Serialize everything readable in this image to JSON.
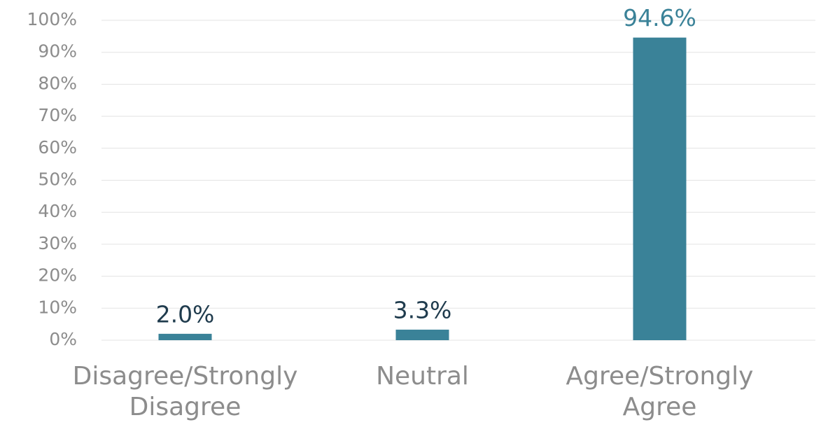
{
  "chart_data": {
    "type": "bar",
    "categories": [
      "Disagree/Strongly Disagree",
      "Neutral",
      "Agree/Strongly Agree"
    ],
    "values": [
      2.0,
      3.3,
      94.6
    ],
    "value_labels": [
      "2.0%",
      "3.3%",
      "94.6%"
    ],
    "value_label_colors": [
      "#1f3b4d",
      "#1f3b4d",
      "#3a8298"
    ],
    "color": "#3a8298",
    "ylim": [
      0,
      100
    ],
    "yticks": [
      {
        "value": 0,
        "label": "0%"
      },
      {
        "value": 10,
        "label": "10%"
      },
      {
        "value": 20,
        "label": "20%"
      },
      {
        "value": 30,
        "label": "30%"
      },
      {
        "value": 40,
        "label": "40%"
      },
      {
        "value": 50,
        "label": "50%"
      },
      {
        "value": 60,
        "label": "60%"
      },
      {
        "value": 70,
        "label": "70%"
      },
      {
        "value": 80,
        "label": "80%"
      },
      {
        "value": 90,
        "label": "90%"
      },
      {
        "value": 100,
        "label": "100%"
      }
    ],
    "grid": true
  }
}
